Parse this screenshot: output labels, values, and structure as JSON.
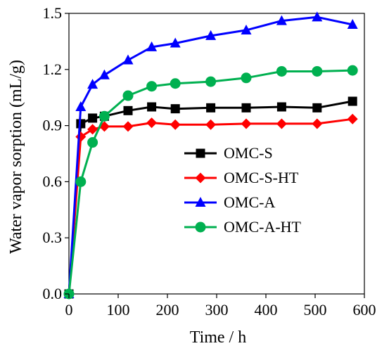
{
  "chart_data": {
    "type": "line",
    "title": "",
    "xlabel": "Time / h",
    "ylabel": "Water vapor sorption (mL/g)",
    "xlim": [
      0,
      600
    ],
    "ylim": [
      0.0,
      1.5
    ],
    "xticks": [
      "0",
      "100",
      "200",
      "300",
      "400",
      "500",
      "600"
    ],
    "yticks": [
      "0.0",
      "0.3",
      "0.6",
      "0.9",
      "1.2",
      "1.5"
    ],
    "grid": false,
    "legend_position": "center-right",
    "series": [
      {
        "name": "OMC-S",
        "color": "#000000",
        "marker": "square",
        "x": [
          0,
          24,
          48,
          72,
          120,
          168,
          216,
          288,
          360,
          432,
          504,
          576
        ],
        "y": [
          0.0,
          0.91,
          0.94,
          0.95,
          0.98,
          1.0,
          0.99,
          0.995,
          0.995,
          1.0,
          0.995,
          1.03
        ]
      },
      {
        "name": "OMC-S-HT",
        "color": "#ff0000",
        "marker": "diamond",
        "x": [
          0,
          24,
          48,
          72,
          120,
          168,
          216,
          288,
          360,
          432,
          504,
          576
        ],
        "y": [
          0.0,
          0.84,
          0.88,
          0.895,
          0.895,
          0.915,
          0.905,
          0.905,
          0.91,
          0.91,
          0.91,
          0.935
        ]
      },
      {
        "name": "OMC-A",
        "color": "#0000ff",
        "marker": "triangle",
        "x": [
          0,
          24,
          48,
          72,
          120,
          168,
          216,
          288,
          360,
          432,
          504,
          576
        ],
        "y": [
          0.0,
          1.0,
          1.12,
          1.17,
          1.25,
          1.32,
          1.34,
          1.38,
          1.41,
          1.46,
          1.48,
          1.44
        ]
      },
      {
        "name": "OMC-A-HT",
        "color": "#00b050",
        "marker": "circle",
        "x": [
          0,
          24,
          48,
          72,
          120,
          168,
          216,
          288,
          360,
          432,
          504,
          576
        ],
        "y": [
          0.0,
          0.6,
          0.81,
          0.95,
          1.06,
          1.11,
          1.125,
          1.135,
          1.155,
          1.19,
          1.19,
          1.195
        ]
      }
    ]
  }
}
